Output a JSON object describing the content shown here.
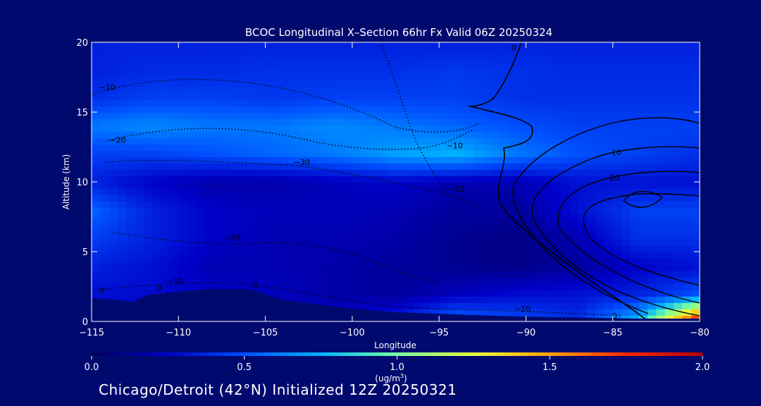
{
  "chart_data": {
    "type": "heatmap",
    "title": "BCOC Longitudinal X–Section 66hr  Fx Valid 06Z 20250324",
    "xlabel": "Longitude",
    "ylabel": "Altitude (km)",
    "xlim": [
      -115,
      -80
    ],
    "ylim": [
      0,
      20
    ],
    "x_ticks": [
      -115,
      -110,
      -105,
      -100,
      -95,
      -90,
      -85,
      -80
    ],
    "x_tick_labels": [
      "−115",
      "−110",
      "−105",
      "−100",
      "−95",
      "−90",
      "−85",
      "−80"
    ],
    "y_ticks": [
      0,
      5,
      10,
      15,
      20
    ],
    "y_tick_labels": [
      "0",
      "5",
      "10",
      "15",
      "20"
    ],
    "colorbar": {
      "min": 0.0,
      "max": 2.0,
      "ticks": [
        0.0,
        0.5,
        1.0,
        1.5,
        2.0
      ],
      "tick_labels": [
        "0.0",
        "0.5",
        "1.0",
        "1.5",
        "2.0"
      ],
      "label_main": "(ug/m",
      "label_sup": "3",
      "label_end": ")",
      "colors": [
        "#00005a",
        "#0000c8",
        "#0050ff",
        "#00b4ff",
        "#78ffa0",
        "#e6ff3c",
        "#ffa000",
        "#ff2800",
        "#b40000"
      ]
    },
    "field_lon": [
      -115,
      -111.5,
      -108,
      -104.5,
      -101,
      -97.5,
      -94,
      -90.5,
      -87,
      -83.5,
      -80
    ],
    "field_alt": [
      0,
      2,
      4,
      6,
      8,
      10,
      12,
      14,
      16,
      18,
      20
    ],
    "field": [
      [
        0.3,
        0.2,
        0.2,
        0.2,
        0.25,
        0.35,
        0.6,
        0.5,
        0.4,
        0.8,
        1.9
      ],
      [
        0.3,
        0.28,
        0.25,
        0.22,
        0.18,
        0.15,
        0.22,
        0.28,
        0.3,
        0.35,
        0.5
      ],
      [
        0.35,
        0.3,
        0.2,
        0.2,
        0.18,
        0.15,
        0.12,
        0.1,
        0.15,
        0.25,
        0.3
      ],
      [
        0.45,
        0.35,
        0.25,
        0.2,
        0.2,
        0.18,
        0.12,
        0.1,
        0.2,
        0.4,
        0.4
      ],
      [
        0.55,
        0.35,
        0.25,
        0.22,
        0.22,
        0.2,
        0.15,
        0.15,
        0.3,
        0.45,
        0.45
      ],
      [
        0.35,
        0.25,
        0.18,
        0.18,
        0.22,
        0.25,
        0.2,
        0.2,
        0.3,
        0.3,
        0.3
      ],
      [
        0.45,
        0.45,
        0.5,
        0.55,
        0.6,
        0.7,
        0.75,
        0.6,
        0.5,
        0.45,
        0.4
      ],
      [
        0.6,
        0.65,
        0.6,
        0.6,
        0.65,
        0.6,
        0.55,
        0.5,
        0.45,
        0.45,
        0.45
      ],
      [
        0.4,
        0.45,
        0.45,
        0.42,
        0.45,
        0.45,
        0.45,
        0.4,
        0.4,
        0.4,
        0.4
      ],
      [
        0.35,
        0.38,
        0.38,
        0.4,
        0.4,
        0.4,
        0.42,
        0.4,
        0.38,
        0.38,
        0.38
      ],
      [
        0.35,
        0.35,
        0.35,
        0.35,
        0.35,
        0.35,
        0.35,
        0.35,
        0.35,
        0.35,
        0.35
      ]
    ],
    "contour_labels": [
      {
        "text": "−10",
        "lon": -114.1,
        "alt": 16.6
      },
      {
        "text": "−20",
        "lon": -113.5,
        "alt": 12.8
      },
      {
        "text": "−30",
        "lon": -102.9,
        "alt": 11.2
      },
      {
        "text": "−10",
        "lon": -94.1,
        "alt": 12.4
      },
      {
        "text": "−20",
        "lon": -94.0,
        "alt": 9.3
      },
      {
        "text": "−20",
        "lon": -106.9,
        "alt": 5.8
      },
      {
        "text": "−10",
        "lon": -110.2,
        "alt": 2.7
      },
      {
        "text": "0",
        "lon": -114.4,
        "alt": 2.0
      },
      {
        "text": "0",
        "lon": -111.1,
        "alt": 2.2
      },
      {
        "text": "0",
        "lon": -105.6,
        "alt": 2.4
      },
      {
        "text": "−10",
        "lon": -90.2,
        "alt": 0.7
      },
      {
        "text": "0",
        "lon": -90.7,
        "alt": 19.4
      },
      {
        "text": "10",
        "lon": -84.8,
        "alt": 11.9
      },
      {
        "text": "20",
        "lon": -84.9,
        "alt": 10.1
      },
      {
        "text": "0",
        "lon": -84.9,
        "alt": 0.2
      }
    ]
  },
  "footer": {
    "caption": "Chicago/Detroit (42°N) Initialized 12Z 20250321"
  }
}
